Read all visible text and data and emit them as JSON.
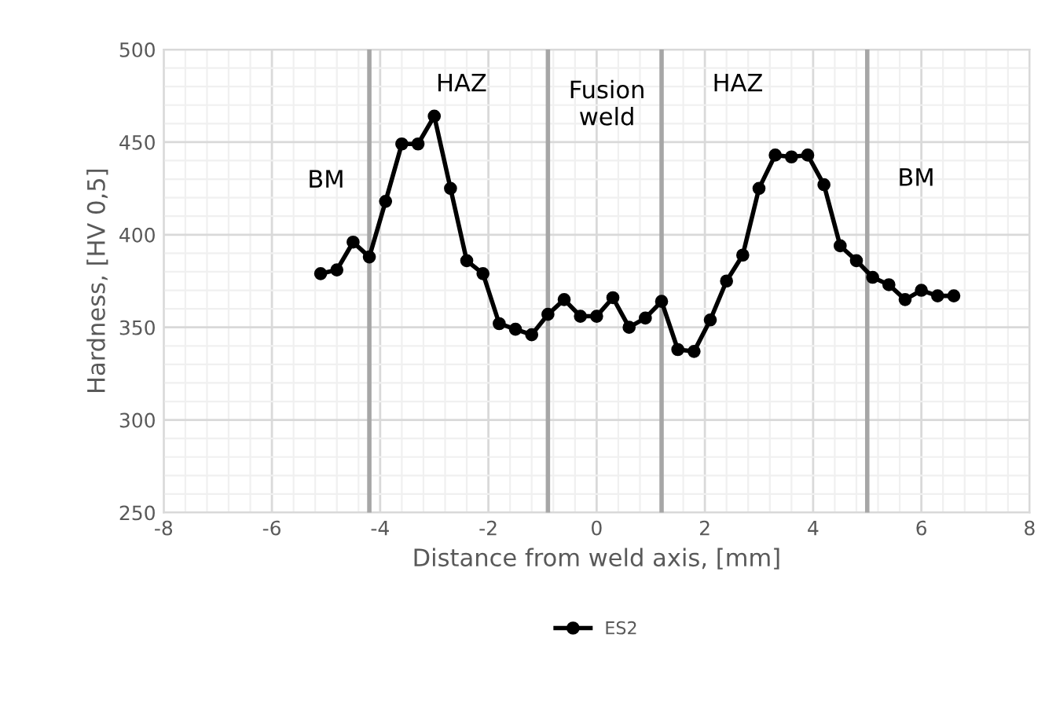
{
  "chart_data": {
    "type": "line",
    "xlabel": "Distance from weld axis, [mm]",
    "ylabel": "Hardness, [HV 0,5]",
    "x": [
      -5.1,
      -4.8,
      -4.5,
      -4.2,
      -3.9,
      -3.6,
      -3.3,
      -3.0,
      -2.7,
      -2.4,
      -2.1,
      -1.8,
      -1.5,
      -1.2,
      -0.9,
      -0.6,
      -0.3,
      0.0,
      0.3,
      0.6,
      0.9,
      1.2,
      1.5,
      1.8,
      2.1,
      2.4,
      2.7,
      3.0,
      3.3,
      3.6,
      3.9,
      4.2,
      4.5,
      4.8,
      5.1,
      5.4,
      5.7,
      6.0,
      6.3,
      6.6
    ],
    "series": [
      {
        "name": "ES2",
        "color": "#000000",
        "values": [
          379,
          381,
          396,
          388,
          418,
          449,
          449,
          464,
          425,
          386,
          379,
          352,
          349,
          346,
          357,
          365,
          356,
          356,
          366,
          350,
          355,
          364,
          338,
          337,
          354,
          375,
          389,
          425,
          443,
          442,
          443,
          427,
          394,
          386,
          377,
          373,
          365,
          370,
          367,
          367
        ]
      }
    ],
    "xlim": [
      -8,
      8
    ],
    "xticks": [
      -8,
      -6,
      -4,
      -2,
      0,
      2,
      4,
      6,
      8
    ],
    "ylim": [
      250,
      500
    ],
    "yticks": [
      250,
      300,
      350,
      400,
      450,
      500
    ],
    "ref_lines": [
      {
        "axis": "x",
        "value": -4.2,
        "color": "#a6a6a6"
      },
      {
        "axis": "x",
        "value": -0.9,
        "color": "#a6a6a6"
      },
      {
        "axis": "x",
        "value": 1.2,
        "color": "#a6a6a6"
      },
      {
        "axis": "x",
        "value": 5.0,
        "color": "#a6a6a6"
      }
    ],
    "annotations": [
      "BM",
      "HAZ",
      "Fusion\nweld",
      "HAZ",
      "BM"
    ],
    "grid": true,
    "legend": "bottom",
    "marker": "circle",
    "line_style": "solid"
  }
}
